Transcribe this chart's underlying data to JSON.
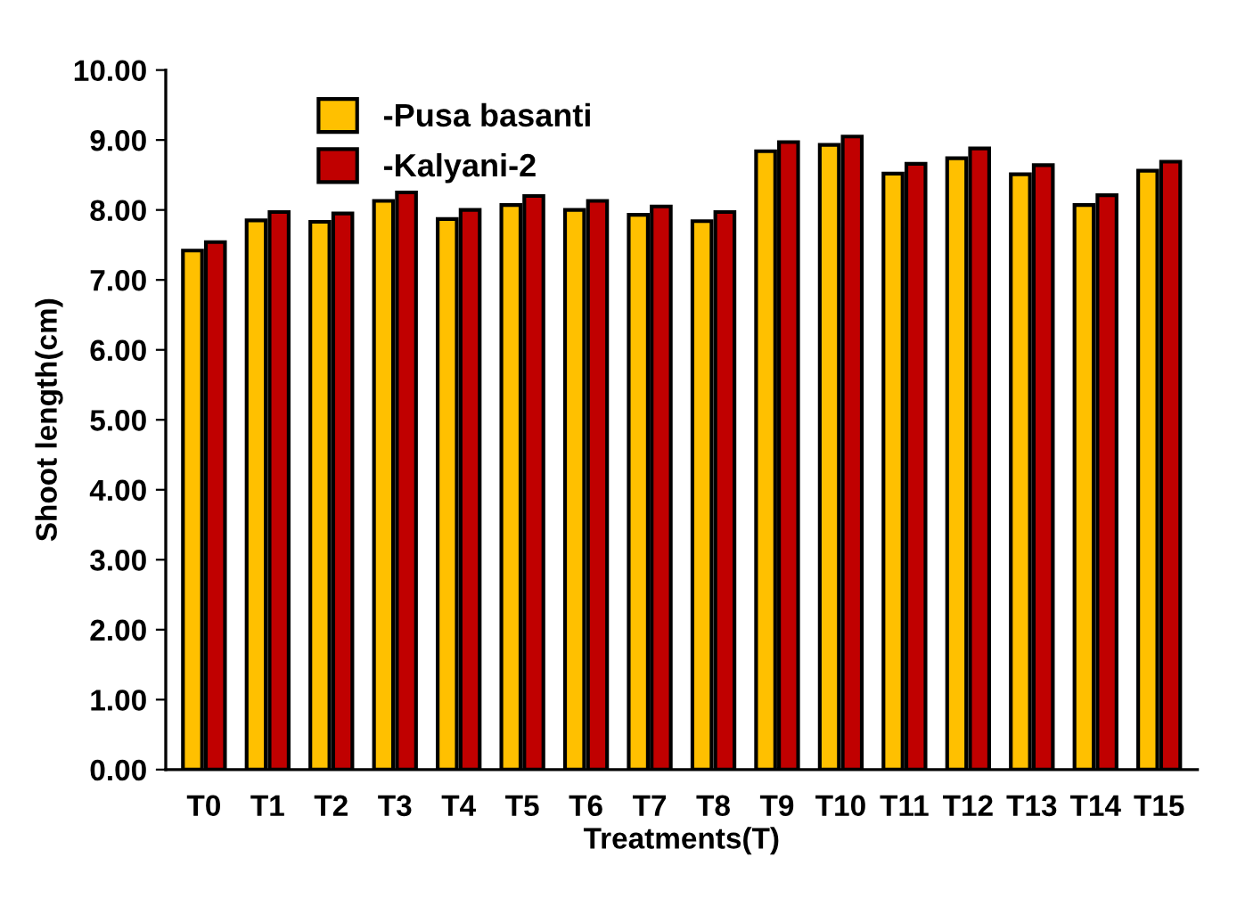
{
  "chart_data": {
    "type": "bar",
    "xlabel": "Treatments(T)",
    "ylabel": "Shoot length(cm)",
    "categories": [
      "T0",
      "T1",
      "T2",
      "T3",
      "T4",
      "T5",
      "T6",
      "T7",
      "T8",
      "T9",
      "T10",
      "T11",
      "T12",
      "T13",
      "T14",
      "T15"
    ],
    "series": [
      {
        "name": "-Pusa basanti",
        "color": "#ffc000",
        "values": [
          7.42,
          7.85,
          7.83,
          8.13,
          7.87,
          8.07,
          8.0,
          7.93,
          7.84,
          8.84,
          8.93,
          8.52,
          8.74,
          8.51,
          8.07,
          8.56
        ]
      },
      {
        "name": "-Kalyani-2",
        "color": "#c00000",
        "values": [
          7.54,
          7.97,
          7.95,
          8.25,
          8.0,
          8.2,
          8.13,
          8.05,
          7.97,
          8.97,
          9.05,
          8.66,
          8.88,
          8.64,
          8.21,
          8.69
        ]
      }
    ],
    "ylim": [
      0,
      10
    ],
    "yticks": [
      {
        "value": 0,
        "label": "0.00"
      },
      {
        "value": 1,
        "label": "1.00"
      },
      {
        "value": 2,
        "label": "2.00"
      },
      {
        "value": 3,
        "label": "3.00"
      },
      {
        "value": 4,
        "label": "4.00"
      },
      {
        "value": 5,
        "label": "5.00"
      },
      {
        "value": 6,
        "label": "6.00"
      },
      {
        "value": 7,
        "label": "7.00"
      },
      {
        "value": 8,
        "label": "8.00"
      },
      {
        "value": 9,
        "label": "9.00"
      },
      {
        "value": 10,
        "label": "10.00"
      }
    ],
    "grid": false,
    "legend": "top left"
  }
}
